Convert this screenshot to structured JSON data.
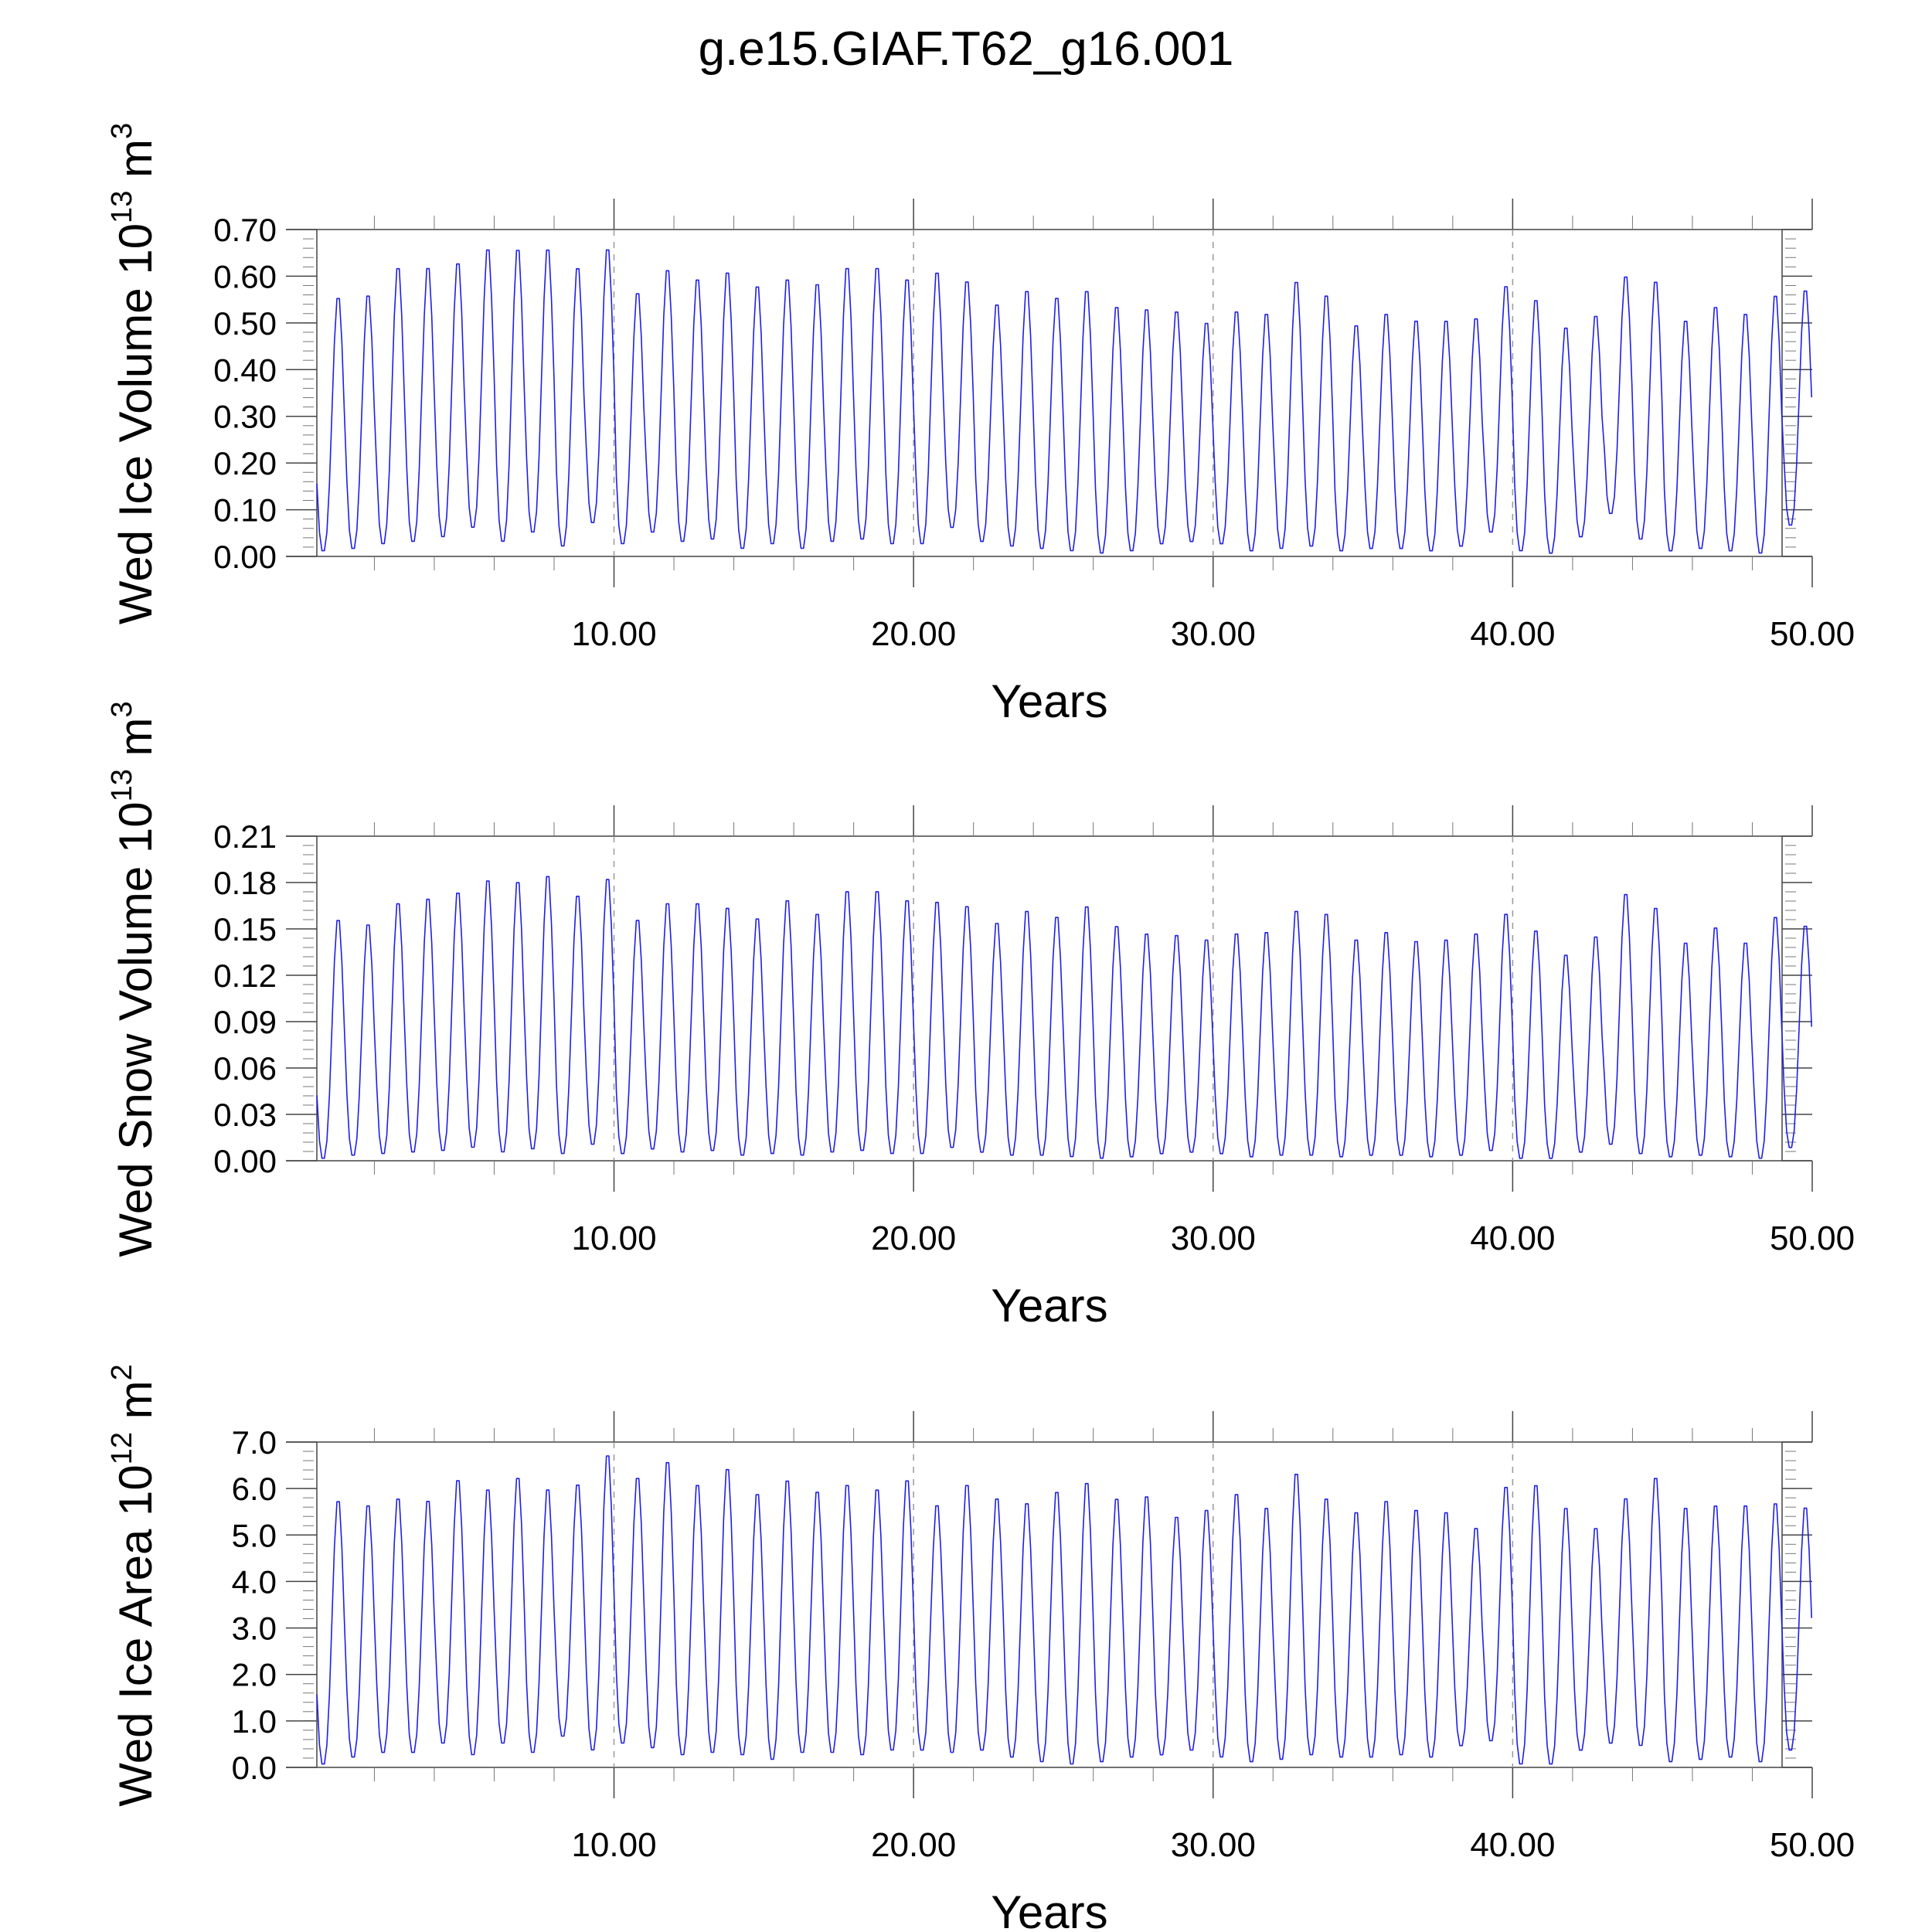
{
  "page": {
    "title": "g.e15.GIAF.T62_g16.001"
  },
  "chart_data": [
    {
      "type": "line",
      "xlabel": "Years",
      "ylabel": "Wed Ice Volume 10^13 m^3",
      "ylabel_parts": {
        "base": "Wed Ice Volume 10",
        "exp1": "13",
        "unit": " m",
        "exp2": "3"
      },
      "xlim": [
        0.08,
        50.0
      ],
      "ylim": [
        0.0,
        0.7
      ],
      "x_ticks": [
        10,
        20,
        30,
        40,
        50
      ],
      "x_tick_labels": [
        "10.00",
        "20.00",
        "30.00",
        "40.00",
        "50.00"
      ],
      "y_ticks": [
        0.0,
        0.1,
        0.2,
        0.3,
        0.4,
        0.5,
        0.6,
        0.7
      ],
      "y_tick_labels": [
        "0.00",
        "0.10",
        "0.20",
        "0.30",
        "0.40",
        "0.50",
        "0.60",
        "0.70"
      ],
      "line_color": "#1f1fe6",
      "decade_marker_color": "#999999",
      "series": [
        {
          "x_start": 0.0833,
          "step": 0.0833,
          "cycle_peaks": [
            0.565,
            0.57,
            0.63,
            0.63,
            0.64,
            0.67,
            0.67,
            0.67,
            0.63,
            0.67,
            0.575,
            0.625,
            0.605,
            0.62,
            0.59,
            0.605,
            0.595,
            0.63,
            0.63,
            0.605,
            0.62,
            0.6,
            0.55,
            0.58,
            0.565,
            0.58,
            0.545,
            0.54,
            0.535,
            0.51,
            0.535,
            0.53,
            0.6,
            0.57,
            0.505,
            0.53,
            0.515,
            0.515,
            0.52,
            0.59,
            0.56,
            0.5,
            0.525,
            0.61,
            0.6,
            0.515,
            0.545,
            0.53,
            0.57,
            0.58
          ],
          "cycle_troughs": [
            0.01,
            0.015,
            0.025,
            0.03,
            0.04,
            0.06,
            0.03,
            0.05,
            0.02,
            0.07,
            0.025,
            0.05,
            0.03,
            0.035,
            0.015,
            0.025,
            0.015,
            0.03,
            0.035,
            0.025,
            0.025,
            0.06,
            0.03,
            0.02,
            0.015,
            0.01,
            0.005,
            0.01,
            0.025,
            0.03,
            0.025,
            0.01,
            0.015,
            0.02,
            0.01,
            0.015,
            0.015,
            0.01,
            0.02,
            0.05,
            0.01,
            0.005,
            0.04,
            0.09,
            0.035,
            0.01,
            0.015,
            0.01,
            0.005,
            0.065
          ]
        }
      ]
    },
    {
      "type": "line",
      "xlabel": "Years",
      "ylabel": "Wed Snow Volume 10^13 m^3",
      "ylabel_parts": {
        "base": "Wed Snow Volume 10",
        "exp1": "13",
        "unit": " m",
        "exp2": "3"
      },
      "xlim": [
        0.08,
        50.0
      ],
      "ylim": [
        0.0,
        0.21
      ],
      "x_ticks": [
        10,
        20,
        30,
        40,
        50
      ],
      "x_tick_labels": [
        "10.00",
        "20.00",
        "30.00",
        "40.00",
        "50.00"
      ],
      "y_ticks": [
        0.0,
        0.03,
        0.06,
        0.09,
        0.12,
        0.15,
        0.18,
        0.21
      ],
      "y_tick_labels": [
        "0.00",
        "0.03",
        "0.06",
        "0.09",
        "0.12",
        "0.15",
        "0.18",
        "0.21"
      ],
      "line_color": "#1f1fe6",
      "decade_marker_color": "#999999",
      "series": [
        {
          "x_start": 0.0833,
          "step": 0.0833,
          "cycle_peaks": [
            0.159,
            0.156,
            0.17,
            0.173,
            0.177,
            0.185,
            0.184,
            0.188,
            0.175,
            0.186,
            0.159,
            0.17,
            0.17,
            0.167,
            0.16,
            0.172,
            0.163,
            0.178,
            0.178,
            0.172,
            0.171,
            0.168,
            0.157,
            0.165,
            0.161,
            0.168,
            0.155,
            0.15,
            0.149,
            0.146,
            0.15,
            0.151,
            0.165,
            0.163,
            0.146,
            0.151,
            0.145,
            0.146,
            0.15,
            0.163,
            0.152,
            0.136,
            0.148,
            0.176,
            0.167,
            0.144,
            0.154,
            0.144,
            0.161,
            0.155
          ],
          "cycle_troughs": [
            0.001,
            0.003,
            0.004,
            0.005,
            0.006,
            0.008,
            0.005,
            0.007,
            0.004,
            0.01,
            0.004,
            0.007,
            0.005,
            0.006,
            0.003,
            0.004,
            0.003,
            0.005,
            0.006,
            0.004,
            0.004,
            0.008,
            0.005,
            0.003,
            0.003,
            0.002,
            0.001,
            0.002,
            0.004,
            0.005,
            0.004,
            0.002,
            0.003,
            0.003,
            0.002,
            0.003,
            0.003,
            0.002,
            0.003,
            0.006,
            0.001,
            0.001,
            0.005,
            0.01,
            0.004,
            0.002,
            0.003,
            0.002,
            0.001,
            0.008
          ]
        }
      ]
    },
    {
      "type": "line",
      "xlabel": "Years",
      "ylabel": "Wed Ice Area 10^12 m^2",
      "ylabel_parts": {
        "base": "Wed Ice Area 10",
        "exp1": "12",
        "unit": " m",
        "exp2": "2"
      },
      "xlim": [
        0.08,
        50.0
      ],
      "ylim": [
        0.0,
        7.0
      ],
      "x_ticks": [
        10,
        20,
        30,
        40,
        50
      ],
      "x_tick_labels": [
        "10.00",
        "20.00",
        "30.00",
        "40.00",
        "50.00"
      ],
      "y_ticks": [
        0.0,
        1.0,
        2.0,
        3.0,
        4.0,
        5.0,
        6.0,
        7.0
      ],
      "y_tick_labels": [
        "0.0",
        "1.0",
        "2.0",
        "3.0",
        "4.0",
        "5.0",
        "6.0",
        "7.0"
      ],
      "line_color": "#1f1fe6",
      "decade_marker_color": "#999999",
      "series": [
        {
          "x_start": 0.0833,
          "step": 0.0833,
          "cycle_peaks": [
            5.85,
            5.75,
            5.9,
            5.85,
            6.3,
            6.1,
            6.35,
            6.1,
            6.2,
            6.85,
            6.35,
            6.7,
            6.2,
            6.55,
            6.0,
            6.3,
            6.05,
            6.2,
            6.1,
            6.3,
            5.75,
            6.2,
            5.9,
            5.8,
            6.05,
            6.25,
            5.9,
            5.95,
            5.5,
            5.65,
            6.0,
            5.7,
            6.45,
            5.9,
            5.6,
            5.85,
            5.65,
            5.6,
            5.25,
            6.15,
            6.2,
            5.7,
            5.25,
            5.9,
            6.35,
            5.7,
            5.75,
            5.75,
            5.8,
            5.7
          ],
          "cycle_troughs": [
            0.05,
            0.2,
            0.3,
            0.3,
            0.5,
            0.25,
            0.5,
            0.3,
            0.65,
            0.35,
            0.5,
            0.4,
            0.25,
            0.3,
            0.25,
            0.15,
            0.3,
            0.3,
            0.25,
            0.35,
            0.35,
            0.3,
            0.35,
            0.2,
            0.1,
            0.05,
            0.1,
            0.2,
            0.25,
            0.35,
            0.2,
            0.1,
            0.15,
            0.25,
            0.2,
            0.2,
            0.25,
            0.2,
            0.45,
            0.55,
            0.05,
            0.05,
            0.35,
            0.5,
            0.45,
            0.1,
            0.15,
            0.2,
            0.1,
            0.35
          ]
        }
      ]
    }
  ]
}
